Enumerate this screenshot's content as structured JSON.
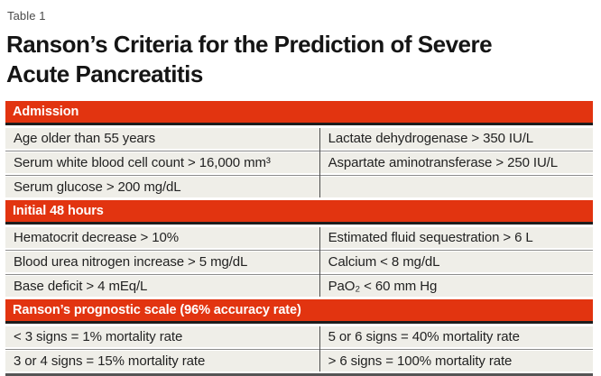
{
  "page": {
    "table_label": "Table 1",
    "title_line1": "Ranson’s Criteria for the Prediction of Severe",
    "title_line2": "Acute Pancreatitis"
  },
  "colors": {
    "header_red": "#E23410",
    "row_bg": "#EFEEE8"
  },
  "sections": [
    {
      "header": "Admission",
      "rows": [
        [
          "Age older than 55 years",
          "Lactate dehydrogenase > 350 IU/L"
        ],
        [
          "Serum white blood cell count > 16,000 mm³",
          "Aspartate aminotransferase > 250 IU/L"
        ],
        [
          "Serum glucose > 200 mg/dL",
          ""
        ]
      ]
    },
    {
      "header": "Initial 48 hours",
      "rows": [
        [
          "Hematocrit decrease > 10%",
          "Estimated fluid sequestration > 6 L"
        ],
        [
          "Blood urea nitrogen increase > 5 mg/dL",
          "Calcium < 8 mg/dL"
        ],
        [
          "Base deficit > 4 mEq/L",
          "PaO₂ < 60 mm Hg"
        ]
      ]
    },
    {
      "header": "Ranson’s prognostic scale (96% accuracy rate)",
      "rows": [
        [
          "< 3 signs = 1% mortality rate",
          "5 or 6 signs = 40% mortality rate"
        ],
        [
          "3 or 4 signs = 15% mortality rate",
          "> 6 signs = 100% mortality rate"
        ]
      ]
    }
  ]
}
